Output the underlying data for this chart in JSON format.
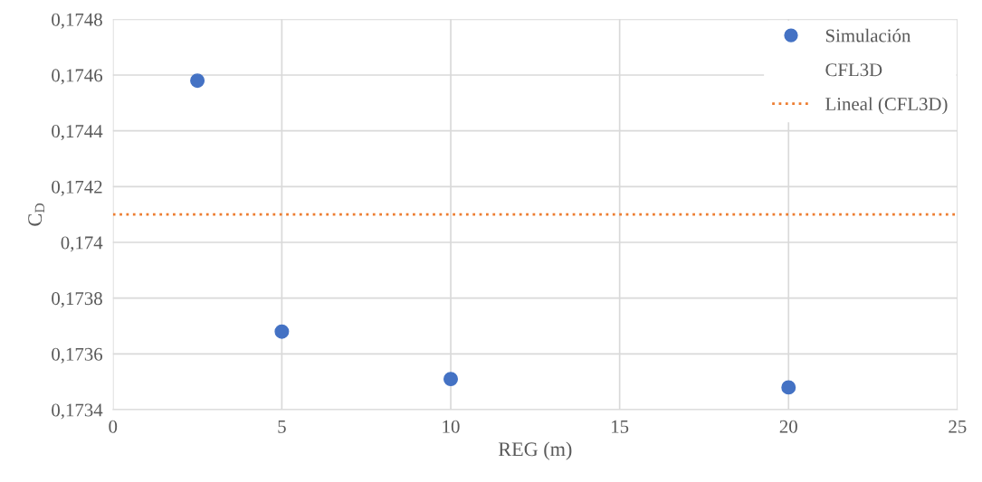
{
  "chart_data": {
    "type": "scatter",
    "xlabel": "REG (m)",
    "ylabel": "C$_{D}$",
    "xlim": [
      0,
      25
    ],
    "xticks": [
      0,
      5,
      10,
      15,
      20,
      25
    ],
    "ylim": [
      0.1734,
      0.1748
    ],
    "yticks": [
      {
        "value": 0.1734,
        "label": "0,1734"
      },
      {
        "value": 0.1736,
        "label": "0,1736"
      },
      {
        "value": 0.1738,
        "label": "0,1738"
      },
      {
        "value": 0.174,
        "label": "0,174"
      },
      {
        "value": 0.1742,
        "label": "0,1742"
      },
      {
        "value": 0.1744,
        "label": "0,1744"
      },
      {
        "value": 0.1746,
        "label": "0,1746"
      },
      {
        "value": 0.1748,
        "label": "0,1748"
      }
    ],
    "grid": true,
    "legend": "top right",
    "series": [
      {
        "name": "Simulación",
        "marker": "circle",
        "color": "#4472c4",
        "x": [
          2.5,
          5,
          10,
          20
        ],
        "values": [
          0.17458,
          0.17368,
          0.17351,
          0.17348
        ]
      },
      {
        "name": "CFL3D",
        "marker": "none"
      },
      {
        "name": "Lineal (CFL3D)",
        "type": "line",
        "marker": "none",
        "line_style": "dotted",
        "color": "#ed7d31",
        "x": [
          0,
          25
        ],
        "values": [
          0.1741,
          0.1741
        ]
      }
    ]
  }
}
